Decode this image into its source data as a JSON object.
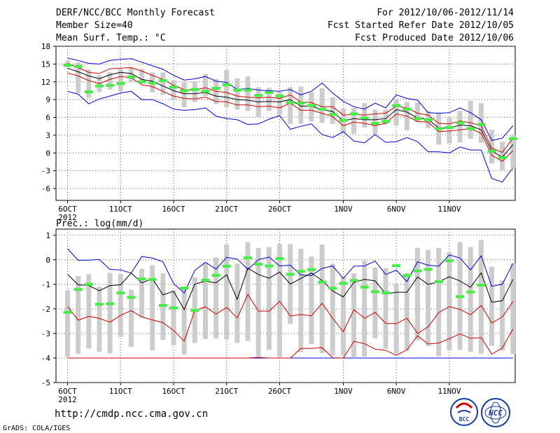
{
  "header": {
    "title": "DERF/NCC/BCC Monthly Forecast",
    "member_size": "Member Size=40",
    "variable": "Mean Surf. Temp.: °C",
    "period": "For 2012/10/06-2012/11/14",
    "started": "Fcst Started Refer Date 2012/10/05",
    "produced": "Fcst Produced Date 2012/10/06"
  },
  "footer": {
    "url": "http://cmdp.ncc.cma.gov.cn",
    "grads": "GrADS: COLA/IGES",
    "logo1": "BCC",
    "logo2": "NCC"
  },
  "colors": {
    "blue": "#0000cc",
    "red": "#cc0000",
    "black": "#000000",
    "box": "#cccccc",
    "green": "#44ee44",
    "grid": "#555555"
  },
  "chart_data": [
    {
      "type": "box-line",
      "name": "temperature",
      "title": "Mean Surf. Temp.: °C",
      "ylim": [
        -8,
        18
      ],
      "yticks": [
        18,
        15,
        12,
        9,
        6,
        3,
        0,
        -3,
        -6
      ],
      "x_tick_labels": [
        "6OCT",
        "11OCT",
        "16OCT",
        "21OCT",
        "26OCT",
        "1NOV",
        "6NOV",
        "11NOV"
      ],
      "x_tick_days": [
        1,
        6,
        11,
        16,
        21,
        27,
        32,
        37
      ],
      "year_label": "2012",
      "max": [
        16.0,
        15.6,
        15.1,
        15.0,
        15.6,
        15.8,
        15.9,
        15.3,
        14.7,
        14.1,
        13.1,
        12.3,
        12.5,
        12.9,
        12.1,
        11.9,
        10.7,
        10.9,
        10.6,
        10.5,
        10.4,
        10.7,
        9.8,
        10.4,
        11.8,
        10.1,
        8.7,
        7.8,
        7.4,
        8.4,
        7.6,
        9.8,
        9.2,
        8.9,
        6.8,
        6.7,
        6.8,
        7.6,
        6.8,
        5.6,
        2.1,
        2.5,
        4.6
      ],
      "p75": [
        15.1,
        14.4,
        13.6,
        13.4,
        14.2,
        14.3,
        14.4,
        13.8,
        13.1,
        12.4,
        11.4,
        10.7,
        10.6,
        11.0,
        10.4,
        10.2,
        9.6,
        9.4,
        9.3,
        9.4,
        9.2,
        9.8,
        8.6,
        8.5,
        7.8,
        7.8,
        6.4,
        6.5,
        6.4,
        6.6,
        6.7,
        7.9,
        7.6,
        6.7,
        6.4,
        5.0,
        4.9,
        5.4,
        5.1,
        4.6,
        0.8,
        0.1,
        2.5
      ],
      "mean": [
        14.3,
        13.7,
        13.0,
        12.5,
        13.2,
        13.6,
        13.4,
        12.4,
        12.1,
        11.3,
        10.5,
        10.0,
        10.0,
        10.2,
        9.6,
        9.4,
        9.0,
        8.9,
        8.6,
        8.7,
        8.6,
        9.0,
        7.9,
        7.9,
        7.3,
        7.0,
        5.4,
        5.8,
        5.6,
        5.6,
        5.8,
        7.3,
        6.9,
        5.9,
        5.7,
        4.2,
        4.2,
        4.7,
        4.6,
        3.9,
        0.3,
        -0.7,
        1.4
      ],
      "p25": [
        13.5,
        13.0,
        12.2,
        11.7,
        12.4,
        12.9,
        12.7,
        11.5,
        11.2,
        10.4,
        9.6,
        9.2,
        9.1,
        9.4,
        8.7,
        8.6,
        8.1,
        8.1,
        7.8,
        7.9,
        7.6,
        8.4,
        7.2,
        7.2,
        6.7,
        6.1,
        4.6,
        5.2,
        5.0,
        4.6,
        5.0,
        6.6,
        6.2,
        5.3,
        5.2,
        3.6,
        3.7,
        3.9,
        4.1,
        3.3,
        -0.4,
        -1.4,
        0.4
      ],
      "min": [
        10.4,
        9.9,
        8.3,
        9.1,
        9.6,
        10.1,
        10.4,
        9.0,
        9.0,
        8.3,
        7.4,
        7.2,
        7.3,
        7.6,
        6.2,
        5.8,
        5.6,
        4.8,
        4.9,
        5.7,
        6.3,
        4.0,
        4.5,
        4.9,
        3.1,
        2.6,
        3.6,
        2.0,
        1.7,
        3.1,
        1.8,
        1.9,
        2.6,
        1.9,
        0.2,
        0.2,
        0.0,
        1.0,
        0.5,
        0.5,
        -4.3,
        -4.9,
        -2.5
      ],
      "box_hi": [
        15.6,
        15.3,
        14.1,
        13.1,
        13.6,
        14.1,
        14.4,
        14.2,
        13.6,
        13.6,
        12.2,
        11.9,
        12.1,
        13.3,
        12.5,
        14.0,
        12.6,
        12.9,
        11.1,
        11.0,
        10.3,
        11.1,
        11.2,
        10.2,
        10.9,
        9.4,
        7.5,
        7.6,
        8.4,
        7.3,
        7.3,
        9.1,
        8.6,
        8.5,
        7.1,
        6.8,
        6.1,
        7.1,
        8.8,
        8.4,
        3.9,
        1.9,
        3.0
      ],
      "box_lo": [
        14.4,
        10.1,
        9.3,
        10.3,
        10.7,
        10.4,
        12.0,
        11.7,
        10.2,
        9.8,
        8.9,
        7.7,
        8.6,
        9.6,
        8.3,
        7.7,
        7.3,
        7.1,
        6.1,
        7.1,
        6.4,
        4.9,
        4.9,
        5.3,
        5.1,
        4.9,
        3.3,
        3.2,
        4.3,
        3.1,
        4.8,
        4.6,
        3.8,
        5.2,
        4.2,
        1.4,
        1.6,
        1.8,
        2.4,
        1.7,
        -1.8,
        -2.9,
        -2.5
      ],
      "obs": [
        14.8,
        14.6,
        10.3,
        11.3,
        11.4,
        11.7,
        12.8,
        12.0,
        11.8,
        12.2,
        11.1,
        10.5,
        10.7,
        10.4,
        10.9,
        11.5,
        10.6,
        10.6,
        9.7,
        10.2,
        9.6,
        8.5,
        8.4,
        8.0,
        7.4,
        6.5,
        5.5,
        6.6,
        5.9,
        5.0,
        5.3,
        8.0,
        7.4,
        5.8,
        5.6,
        4.1,
        4.3,
        5.1,
        4.1,
        4.8,
        0.3,
        -0.8,
        2.4
      ]
    },
    {
      "type": "box-line",
      "name": "precipitation",
      "title": "Prec.: log(mm/d)",
      "ylim": [
        -5,
        1.25
      ],
      "yticks": [
        1,
        0,
        -1,
        -2,
        -3,
        -4,
        -5
      ],
      "x_tick_labels": [
        "6OCT",
        "11OCT",
        "16OCT",
        "21OCT",
        "26OCT",
        "1NOV",
        "6NOV",
        "11NOV"
      ],
      "x_tick_days": [
        1,
        6,
        11,
        16,
        21,
        27,
        32,
        37
      ],
      "year_label": "2012",
      "max": [
        0.45,
        -0.02,
        -0.01,
        0.01,
        -0.39,
        -0.41,
        -0.54,
        0.13,
        0.07,
        -0.08,
        -0.97,
        -1.35,
        -0.43,
        -0.1,
        -0.38,
        0.1,
        0.03,
        -0.39,
        0.01,
        0.11,
        -0.25,
        -0.22,
        -0.62,
        -0.64,
        -0.35,
        -0.25,
        -0.76,
        -0.26,
        -0.25,
        -0.05,
        -0.6,
        -0.42,
        -0.89,
        -0.08,
        -0.22,
        -0.26,
        0.2,
        0.07,
        -0.41,
        0.16,
        -1.08,
        -1.0,
        -0.14
      ],
      "mean": [
        -0.59,
        -1.02,
        -1.05,
        -1.26,
        -1.05,
        -1.02,
        -0.54,
        -0.94,
        -0.77,
        -1.43,
        -1.28,
        -2.03,
        -0.99,
        -0.87,
        -0.94,
        -0.61,
        -1.61,
        -0.34,
        -0.6,
        -0.75,
        -0.5,
        -0.99,
        -0.76,
        -0.54,
        -0.84,
        -1.27,
        -1.51,
        -0.92,
        -0.8,
        -0.86,
        -1.39,
        -1.32,
        -1.32,
        -0.7,
        -1.0,
        -0.9,
        -0.69,
        -0.86,
        -1.12,
        -0.53,
        -1.73,
        -1.67,
        -0.8
      ],
      "p10": [
        -1.9,
        -2.46,
        -2.3,
        -2.39,
        -2.54,
        -2.26,
        -2.07,
        -2.33,
        -2.45,
        -2.56,
        -2.88,
        -3.31,
        -2.06,
        -1.92,
        -2.21,
        -1.94,
        -2.37,
        -1.41,
        -2.09,
        -2.09,
        -1.69,
        -2.29,
        -2.23,
        -2.28,
        -1.77,
        -2.39,
        -2.93,
        -2.03,
        -2.38,
        -2.14,
        -2.59,
        -2.6,
        -2.38,
        -3.0,
        -2.73,
        -2.15,
        -1.91,
        -2.02,
        -2.24,
        -1.86,
        -2.57,
        -2.33,
        -1.7
      ],
      "p25": [
        -4.0,
        -4.0,
        -4.0,
        -4.0,
        -4.0,
        -4.0,
        -4.0,
        -4.0,
        -4.0,
        -4.0,
        -4.0,
        -4.0,
        -4.0,
        -4.0,
        -4.0,
        -4.0,
        -4.0,
        -4.0,
        -3.97,
        -4.0,
        -4.0,
        -4.0,
        -3.61,
        -3.61,
        -3.58,
        -3.99,
        -4.0,
        -3.32,
        -3.42,
        -3.64,
        -3.69,
        -3.89,
        -3.67,
        -3.09,
        -3.43,
        -3.39,
        -3.21,
        -3.02,
        -3.2,
        -3.17,
        -3.84,
        -3.59,
        -2.82
      ],
      "min": [
        -4.0,
        -4.0,
        -4.0,
        -4.0,
        -4.0,
        -4.0,
        -4.0,
        -4.0,
        -4.0,
        -4.0,
        -4.0,
        -4.0,
        -4.0,
        -4.0,
        -4.0,
        -4.0,
        -4.0,
        -4.0,
        -4.0,
        -4.0,
        -4.0,
        -4.0,
        -4.0,
        -4.0,
        -4.0,
        -4.0,
        -4.0,
        -4.0,
        -4.0,
        -4.0,
        -4.0,
        -4.0,
        -4.0,
        -4.0,
        -4.0,
        -4.0,
        -4.0,
        -4.0,
        -4.0,
        -4.0,
        -4.0,
        -4.0,
        -4.0
      ],
      "box_hi": [
        -1.24,
        -0.66,
        -0.59,
        -1.1,
        -0.53,
        -0.58,
        -1.22,
        -0.37,
        -0.22,
        -0.55,
        -1.24,
        -1.2,
        -0.71,
        -0.13,
        0.1,
        0.62,
        -0.16,
        0.72,
        0.48,
        0.52,
        0.64,
        0.64,
        0.45,
        0.13,
        0.62,
        -0.16,
        -0.68,
        -0.55,
        -0.04,
        -0.31,
        -0.34,
        -0.97,
        -0.54,
        0.49,
        0.4,
        0.48,
        0.3,
        0.72,
        0.52,
        0.81,
        -0.28,
        -0.84,
        -0.15
      ],
      "box_lo": [
        -3.95,
        -3.83,
        -3.61,
        -3.75,
        -3.82,
        -3.14,
        -3.55,
        -2.35,
        -3.69,
        -3.26,
        -3.48,
        -3.86,
        -3.39,
        -3.23,
        -3.2,
        -3.25,
        -3.39,
        -3.3,
        -3.93,
        -3.67,
        -3.96,
        -2.61,
        -3.76,
        -3.43,
        -3.81,
        -3.89,
        -3.88,
        -3.96,
        -3.95,
        -3.2,
        -3.63,
        -3.82,
        -3.69,
        -3.28,
        -3.51,
        -3.93,
        -3.7,
        -3.67,
        -3.75,
        -3.83,
        -3.5,
        -3.7,
        -3.84
      ],
      "obs": [
        -2.14,
        -1.21,
        -1.0,
        -1.81,
        -1.79,
        -1.35,
        -1.53,
        -0.78,
        -0.8,
        -1.86,
        -1.96,
        -1.15,
        -2.06,
        -0.83,
        -0.63,
        -0.26,
        null,
        0.08,
        -0.18,
        -0.25,
        0.05,
        -0.59,
        -0.47,
        -0.4,
        -0.91,
        -1.16,
        -0.96,
        -0.84,
        -1.11,
        -1.3,
        -1.34,
        -0.24,
        -0.64,
        -0.45,
        -0.39,
        -0.89,
        -0.04,
        -1.5,
        -1.31,
        -1.03,
        null,
        null,
        null
      ]
    }
  ]
}
